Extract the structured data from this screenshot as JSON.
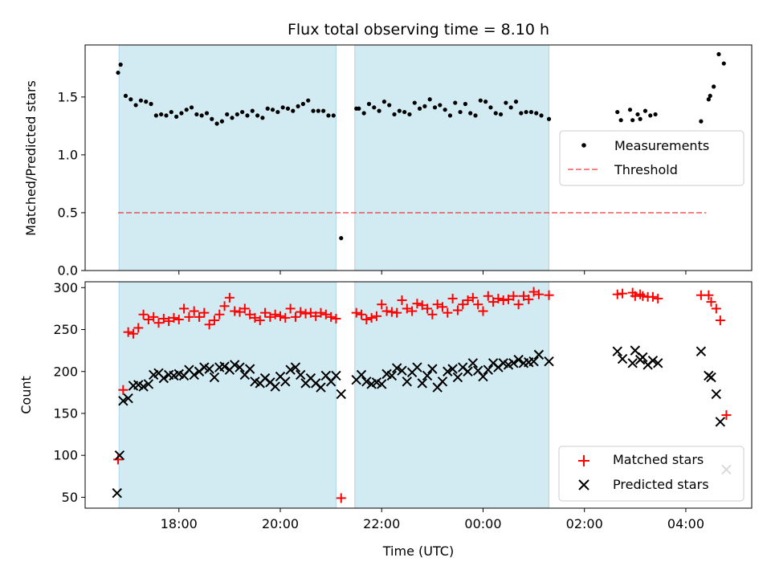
{
  "chart_data": [
    {
      "type": "scatter",
      "panel": "top",
      "title": "Flux total observing time = 8.10 h",
      "xlabel": "",
      "ylabel": "Matched/Predicted stars",
      "ylim": [
        0,
        1.95
      ],
      "yticks": [
        0.0,
        0.5,
        1.0,
        1.5
      ],
      "ytick_labels": [
        "0.0",
        "0.5",
        "1.0",
        "1.5"
      ],
      "grid": false,
      "legend_position": "center-right",
      "shaded_regions": [
        [
          16.82,
          21.1
        ],
        [
          21.47,
          25.3
        ]
      ],
      "shade_color": "#add8e6",
      "series": [
        {
          "name": "Measurements",
          "marker": "dot",
          "color": "#000000",
          "x": [
            16.8,
            16.85,
            16.95,
            17.05,
            17.15,
            17.25,
            17.35,
            17.45,
            17.55,
            17.65,
            17.75,
            17.85,
            17.95,
            18.05,
            18.15,
            18.25,
            18.35,
            18.45,
            18.55,
            18.65,
            18.75,
            18.85,
            18.95,
            19.05,
            19.15,
            19.25,
            19.35,
            19.45,
            19.55,
            19.65,
            19.75,
            19.85,
            19.95,
            20.05,
            20.15,
            20.25,
            20.35,
            20.45,
            20.55,
            20.65,
            20.75,
            20.85,
            20.95,
            21.05,
            21.2,
            21.5,
            21.55,
            21.65,
            21.75,
            21.85,
            21.95,
            22.05,
            22.15,
            22.25,
            22.35,
            22.45,
            22.55,
            22.65,
            22.75,
            22.85,
            22.95,
            23.05,
            23.15,
            23.25,
            23.35,
            23.45,
            23.55,
            23.65,
            23.75,
            23.85,
            23.95,
            24.05,
            24.15,
            24.25,
            24.35,
            24.45,
            24.55,
            24.65,
            24.75,
            24.85,
            24.95,
            25.05,
            25.15,
            25.3,
            26.65,
            26.72,
            26.9,
            26.95,
            27.05,
            27.1,
            27.2,
            27.3,
            27.4,
            28.3,
            28.45,
            28.48,
            28.55,
            28.65,
            28.75
          ],
          "y": [
            1.71,
            1.78,
            1.51,
            1.48,
            1.43,
            1.47,
            1.46,
            1.44,
            1.34,
            1.35,
            1.34,
            1.37,
            1.33,
            1.36,
            1.39,
            1.41,
            1.35,
            1.34,
            1.36,
            1.31,
            1.27,
            1.29,
            1.35,
            1.32,
            1.35,
            1.37,
            1.34,
            1.38,
            1.34,
            1.32,
            1.4,
            1.39,
            1.37,
            1.41,
            1.4,
            1.38,
            1.42,
            1.44,
            1.47,
            1.38,
            1.38,
            1.38,
            1.34,
            1.34,
            0.28,
            1.4,
            1.4,
            1.36,
            1.44,
            1.41,
            1.38,
            1.46,
            1.43,
            1.35,
            1.38,
            1.37,
            1.35,
            1.45,
            1.4,
            1.42,
            1.48,
            1.41,
            1.43,
            1.39,
            1.34,
            1.45,
            1.37,
            1.44,
            1.36,
            1.34,
            1.47,
            1.46,
            1.41,
            1.36,
            1.35,
            1.45,
            1.41,
            1.46,
            1.36,
            1.37,
            1.37,
            1.36,
            1.34,
            1.31,
            1.37,
            1.3,
            1.39,
            1.3,
            1.35,
            1.31,
            1.38,
            1.34,
            1.35,
            1.29,
            1.48,
            1.51,
            1.59,
            1.87,
            1.79
          ]
        },
        {
          "name": "Threshold",
          "type": "line",
          "style": "dashed",
          "color": "#ff0000",
          "alpha": 0.5,
          "x": [
            16.8,
            28.4
          ],
          "y": [
            0.5,
            0.5
          ]
        }
      ]
    },
    {
      "type": "scatter",
      "panel": "bottom",
      "xlabel": "Time (UTC)",
      "ylabel": "Count",
      "ylim": [
        37,
        307
      ],
      "yticks": [
        50,
        100,
        150,
        200,
        250,
        300
      ],
      "ytick_labels": [
        "50",
        "100",
        "150",
        "200",
        "250",
        "300"
      ],
      "xlim": [
        16.15,
        29.3
      ],
      "xticks": [
        18,
        20,
        22,
        24,
        26,
        28
      ],
      "xtick_labels": [
        "18:00",
        "20:00",
        "22:00",
        "00:00",
        "02:00",
        "04:00"
      ],
      "grid": false,
      "legend_position": "bottom-right",
      "shaded_regions": [
        [
          16.82,
          21.1
        ],
        [
          21.47,
          25.3
        ]
      ],
      "shade_color": "#add8e6",
      "series": [
        {
          "name": "Matched stars",
          "marker": "plus",
          "color": "#ff0000",
          "x": [
            16.8,
            16.9,
            17.0,
            17.1,
            17.2,
            17.3,
            17.4,
            17.5,
            17.6,
            17.7,
            17.8,
            17.9,
            18.0,
            18.1,
            18.2,
            18.3,
            18.4,
            18.5,
            18.6,
            18.7,
            18.8,
            18.9,
            19.0,
            19.1,
            19.2,
            19.3,
            19.4,
            19.5,
            19.6,
            19.7,
            19.8,
            19.9,
            20.0,
            20.1,
            20.2,
            20.3,
            20.4,
            20.5,
            20.6,
            20.7,
            20.8,
            20.9,
            21.0,
            21.1,
            21.2,
            21.5,
            21.6,
            21.7,
            21.8,
            21.9,
            22.0,
            22.1,
            22.2,
            22.3,
            22.4,
            22.5,
            22.6,
            22.7,
            22.8,
            22.9,
            23.0,
            23.1,
            23.2,
            23.3,
            23.4,
            23.5,
            23.6,
            23.7,
            23.8,
            23.9,
            24.0,
            24.1,
            24.2,
            24.3,
            24.4,
            24.5,
            24.6,
            24.7,
            24.8,
            24.9,
            25.0,
            25.1,
            25.3,
            26.65,
            26.75,
            26.95,
            27.0,
            27.1,
            27.15,
            27.25,
            27.35,
            27.45,
            28.3,
            28.45,
            28.5,
            28.6,
            28.68,
            28.8
          ],
          "y": [
            95,
            178,
            247,
            245,
            252,
            268,
            262,
            265,
            258,
            263,
            260,
            264,
            262,
            275,
            265,
            272,
            265,
            270,
            256,
            261,
            268,
            278,
            288,
            272,
            271,
            275,
            268,
            264,
            261,
            270,
            265,
            268,
            266,
            264,
            275,
            265,
            271,
            269,
            270,
            266,
            270,
            268,
            265,
            263,
            49,
            270,
            268,
            262,
            264,
            266,
            280,
            272,
            271,
            270,
            285,
            275,
            272,
            281,
            279,
            275,
            268,
            280,
            277,
            270,
            287,
            273,
            280,
            285,
            288,
            280,
            272,
            290,
            283,
            287,
            285,
            286,
            290,
            280,
            290,
            286,
            295,
            292,
            291,
            292,
            293,
            294,
            290,
            292,
            290,
            289,
            289,
            287,
            291,
            291,
            283,
            275,
            261,
            148
          ]
        },
        {
          "name": "Predicted stars",
          "marker": "x",
          "color": "#000000",
          "x": [
            16.78,
            16.83,
            16.9,
            17.0,
            17.1,
            17.2,
            17.3,
            17.4,
            17.5,
            17.6,
            17.7,
            17.8,
            17.9,
            18.0,
            18.1,
            18.2,
            18.3,
            18.4,
            18.5,
            18.6,
            18.7,
            18.8,
            18.9,
            19.0,
            19.1,
            19.2,
            19.3,
            19.4,
            19.5,
            19.6,
            19.7,
            19.8,
            19.9,
            20.0,
            20.1,
            20.2,
            20.3,
            20.4,
            20.5,
            20.6,
            20.7,
            20.8,
            20.9,
            21.0,
            21.1,
            21.2,
            21.5,
            21.6,
            21.7,
            21.8,
            21.9,
            22.0,
            22.1,
            22.2,
            22.3,
            22.4,
            22.5,
            22.6,
            22.7,
            22.8,
            22.9,
            23.0,
            23.1,
            23.2,
            23.3,
            23.4,
            23.5,
            23.6,
            23.7,
            23.8,
            23.9,
            24.0,
            24.1,
            24.2,
            24.3,
            24.4,
            24.5,
            24.6,
            24.7,
            24.8,
            24.9,
            25.0,
            25.1,
            25.3,
            26.65,
            26.75,
            26.95,
            27.0,
            27.1,
            27.15,
            27.25,
            27.35,
            27.45,
            28.3,
            28.45,
            28.5,
            28.6,
            28.68,
            28.8
          ],
          "y": [
            55,
            100,
            165,
            168,
            183,
            184,
            182,
            185,
            196,
            198,
            192,
            196,
            195,
            197,
            195,
            202,
            196,
            200,
            205,
            203,
            193,
            205,
            206,
            202,
            208,
            205,
            196,
            203,
            188,
            186,
            192,
            187,
            182,
            194,
            188,
            202,
            205,
            196,
            186,
            192,
            186,
            181,
            195,
            188,
            195,
            173,
            190,
            196,
            188,
            185,
            187,
            185,
            197,
            195,
            204,
            201,
            188,
            199,
            205,
            186,
            195,
            203,
            181,
            188,
            200,
            203,
            193,
            205,
            200,
            210,
            201,
            194,
            202,
            210,
            205,
            210,
            208,
            210,
            214,
            210,
            211,
            212,
            220,
            212,
            224,
            215,
            210,
            225,
            214,
            217,
            208,
            213,
            210,
            224,
            195,
            193,
            173,
            140,
            83
          ]
        }
      ]
    }
  ]
}
